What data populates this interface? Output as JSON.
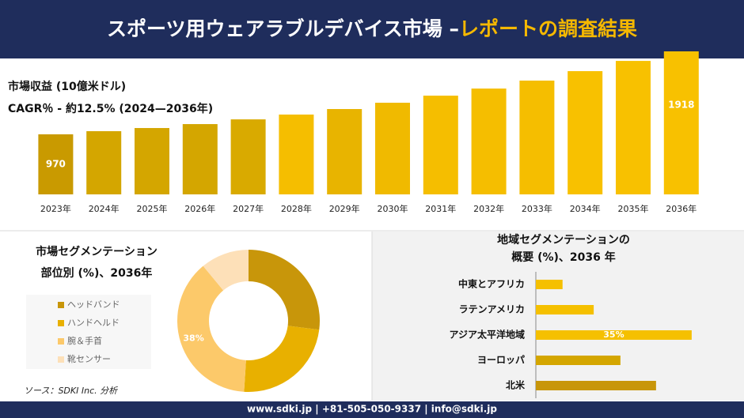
{
  "header": {
    "title": "スポーツ用ウェアラブルデバイス市場 –",
    "highlight": "レポートの調査結果"
  },
  "source": "ソース：SDKI Inc. 分析",
  "footer": "www.sdki.jp | +81-505-050-9337 | info@sdki.jp",
  "chart_data": [
    {
      "type": "bar",
      "title": "市場収益 (10億米ドル)",
      "subtitle": "CAGR％ - 約12.5% (2024—2036年)",
      "categories": [
        "2023年",
        "2024年",
        "2025年",
        "2026年",
        "2027年",
        "2028年",
        "2029年",
        "2030年",
        "2031年",
        "2032年",
        "2033年",
        "2034年",
        "2035年",
        "2036年"
      ],
      "values": [
        970,
        1006,
        1042,
        1087,
        1141,
        1196,
        1259,
        1331,
        1412,
        1493,
        1584,
        1692,
        1809,
        1918
      ],
      "value_labels": [
        "970",
        null,
        null,
        null,
        null,
        null,
        null,
        null,
        null,
        null,
        null,
        null,
        null,
        "1918"
      ],
      "colors": [
        "#c99a00",
        "#d4a600",
        "#d4a600",
        "#d4a600",
        "#d9aa00",
        "#f5be00",
        "#e8b400",
        "#f0ba00",
        "#f5be00",
        "#f5be00",
        "#f5be00",
        "#f8c100",
        "#f8c100",
        "#f8c100"
      ],
      "ylim": [
        627,
        1918
      ]
    },
    {
      "type": "donut",
      "title": "市場セグメンテーション",
      "subtitle": "部位別 (%)、2036年",
      "categories": [
        "ヘッドバンド",
        "ハンドヘルド",
        "腕＆手首",
        "靴センサー"
      ],
      "values": [
        27,
        24,
        38,
        11
      ],
      "value_labels": [
        null,
        null,
        "38%",
        null
      ],
      "colors": [
        "#c8960a",
        "#e8b000",
        "#fcc96a",
        "#fde0b8"
      ]
    },
    {
      "type": "hbar",
      "title": "地域セグメンテーションの",
      "subtitle": "概要 (%)、2036 年",
      "categories": [
        "中東とアフリカ",
        "ラテンアメリカ",
        "アジア太平洋地域",
        "ヨーロッパ",
        "北米"
      ],
      "values": [
        6,
        13,
        35,
        19,
        27
      ],
      "value_labels": [
        null,
        null,
        "35%",
        null,
        null
      ],
      "colors": [
        "#f5c000",
        "#f5c000",
        "#f5c000",
        "#d4a600",
        "#c8960a"
      ],
      "xlim": [
        0,
        40
      ]
    }
  ]
}
